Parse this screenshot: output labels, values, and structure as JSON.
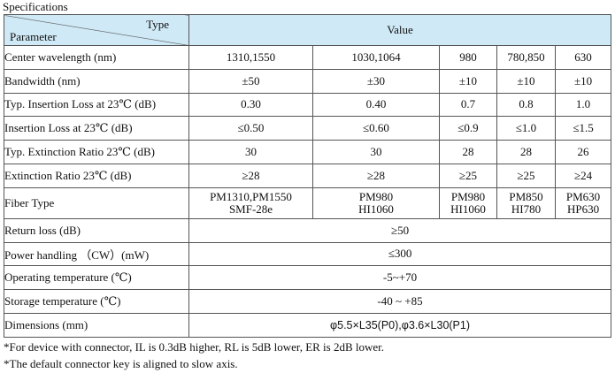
{
  "title": "Specifications",
  "header": {
    "type": "Type",
    "parameter": "Parameter",
    "value": "Value"
  },
  "rows": [
    {
      "label": "Center wavelength (nm)",
      "values": [
        "1310,1550",
        "1030,1064",
        "980",
        "780,850",
        "630"
      ]
    },
    {
      "label": "Bandwidth (nm)",
      "values": [
        "±50",
        "±30",
        "±10",
        "±10",
        "±10"
      ]
    },
    {
      "label": "Typ. Insertion Loss at 23℃ (dB)",
      "values": [
        "0.30",
        "0.40",
        "0.7",
        "0.8",
        "1.0"
      ]
    },
    {
      "label": "Insertion Loss at 23℃ (dB)",
      "values": [
        "≤0.50",
        "≤0.60",
        "≤0.9",
        "≤1.0",
        "≤1.5"
      ]
    },
    {
      "label": "Typ. Extinction Ratio 23℃ (dB)",
      "values": [
        "30",
        "30",
        "28",
        "28",
        "26"
      ]
    },
    {
      "label": "Extinction Ratio 23℃ (dB)",
      "values": [
        "≥28",
        "≥28",
        "≥25",
        "≥25",
        "≥24"
      ]
    }
  ],
  "fiber_type": {
    "label": "Fiber Type",
    "values": [
      [
        "PM1310,PM1550",
        "SMF-28e"
      ],
      [
        "PM980",
        "HI1060"
      ],
      [
        "PM980",
        "HI1060"
      ],
      [
        "PM850",
        "HI780"
      ],
      [
        "PM630",
        "HP630"
      ]
    ]
  },
  "merged_rows": [
    {
      "label": "Return loss (dB)",
      "value": "≥50"
    },
    {
      "label": "Power handling （CW）(mW)",
      "value": "≤300"
    },
    {
      "label": "Operating temperature (℃)",
      "value": "-5~+70"
    },
    {
      "label": "Storage temperature (℃)",
      "value": "-40 ~ +85"
    }
  ],
  "dimensions": {
    "label": "Dimensions (mm)",
    "value": "φ5.5×L35(P0),φ3.6×L30(P1)"
  },
  "notes": [
    "*For device with connector, IL is 0.3dB higher, RL is 5dB lower, ER is 2dB lower.",
    "*The default connector key is aligned to slow axis."
  ]
}
